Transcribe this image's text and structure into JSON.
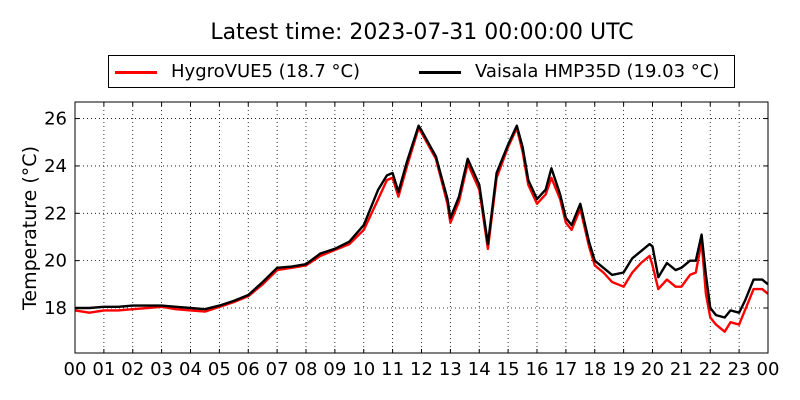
{
  "chart_data": {
    "type": "line",
    "title": "Latest time: 2023-07-31 00:00:00 UTC",
    "xlabel": "",
    "ylabel": "Temperature (°C)",
    "xlim": [
      0,
      24
    ],
    "ylim": [
      16.1,
      26.7
    ],
    "x_tick_labels": [
      "00",
      "01",
      "02",
      "03",
      "04",
      "05",
      "06",
      "07",
      "08",
      "09",
      "10",
      "11",
      "12",
      "13",
      "14",
      "15",
      "16",
      "17",
      "18",
      "19",
      "20",
      "21",
      "22",
      "23",
      "00"
    ],
    "y_ticks": [
      18,
      20,
      22,
      24,
      26
    ],
    "grid": true,
    "legend_position": "top",
    "x": [
      0,
      0.5,
      1,
      1.5,
      2,
      2.5,
      3,
      3.5,
      4,
      4.5,
      5,
      5.5,
      6,
      6.5,
      7,
      7.5,
      8,
      8.5,
      9,
      9.5,
      10,
      10.5,
      10.8,
      11,
      11.2,
      11.5,
      11.9,
      12,
      12.5,
      12.9,
      13,
      13.3,
      13.6,
      14,
      14.3,
      14.6,
      15,
      15.3,
      15.5,
      15.7,
      16,
      16.3,
      16.5,
      16.8,
      17,
      17.2,
      17.5,
      17.8,
      18,
      18.3,
      18.6,
      19,
      19.3,
      19.6,
      19.9,
      20,
      20.2,
      20.5,
      20.8,
      21,
      21.3,
      21.5,
      21.7,
      21.85,
      22,
      22.2,
      22.5,
      22.7,
      23,
      23.2,
      23.5,
      23.8,
      24
    ],
    "series": [
      {
        "name": "HygroVUE5 (18.7 °C)",
        "color": "#ff0000",
        "values": [
          17.9,
          17.8,
          17.9,
          17.9,
          17.95,
          18.0,
          18.05,
          17.95,
          17.9,
          17.85,
          18.05,
          18.25,
          18.5,
          19.0,
          19.6,
          19.7,
          19.8,
          20.2,
          20.45,
          20.7,
          21.3,
          22.6,
          23.4,
          23.5,
          22.7,
          24.0,
          25.6,
          25.4,
          24.3,
          22.4,
          21.6,
          22.5,
          24.1,
          23.0,
          20.5,
          23.5,
          24.8,
          25.6,
          24.6,
          23.2,
          22.4,
          22.8,
          23.5,
          22.6,
          21.6,
          21.3,
          22.2,
          20.6,
          19.8,
          19.5,
          19.1,
          18.9,
          19.5,
          19.9,
          20.2,
          19.8,
          18.8,
          19.2,
          18.9,
          18.9,
          19.4,
          19.5,
          20.8,
          18.6,
          17.6,
          17.3,
          17.0,
          17.4,
          17.3,
          17.9,
          18.8,
          18.8,
          18.6
        ]
      },
      {
        "name": "Vaisala HMP35D (19.03 °C)",
        "color": "#000000",
        "values": [
          18.0,
          18.0,
          18.05,
          18.05,
          18.1,
          18.1,
          18.1,
          18.05,
          18.0,
          17.95,
          18.1,
          18.3,
          18.55,
          19.1,
          19.7,
          19.75,
          19.85,
          20.3,
          20.5,
          20.8,
          21.5,
          23.0,
          23.6,
          23.7,
          22.9,
          24.2,
          25.7,
          25.5,
          24.4,
          22.6,
          21.8,
          22.7,
          24.3,
          23.2,
          20.7,
          23.7,
          24.9,
          25.7,
          24.8,
          23.4,
          22.6,
          23.0,
          23.9,
          22.8,
          21.8,
          21.5,
          22.4,
          20.8,
          20.0,
          19.7,
          19.4,
          19.5,
          20.1,
          20.4,
          20.7,
          20.6,
          19.3,
          19.9,
          19.6,
          19.7,
          20.0,
          20.0,
          21.1,
          19.4,
          18.0,
          17.7,
          17.6,
          17.9,
          17.8,
          18.3,
          19.2,
          19.2,
          19.0
        ]
      }
    ]
  }
}
